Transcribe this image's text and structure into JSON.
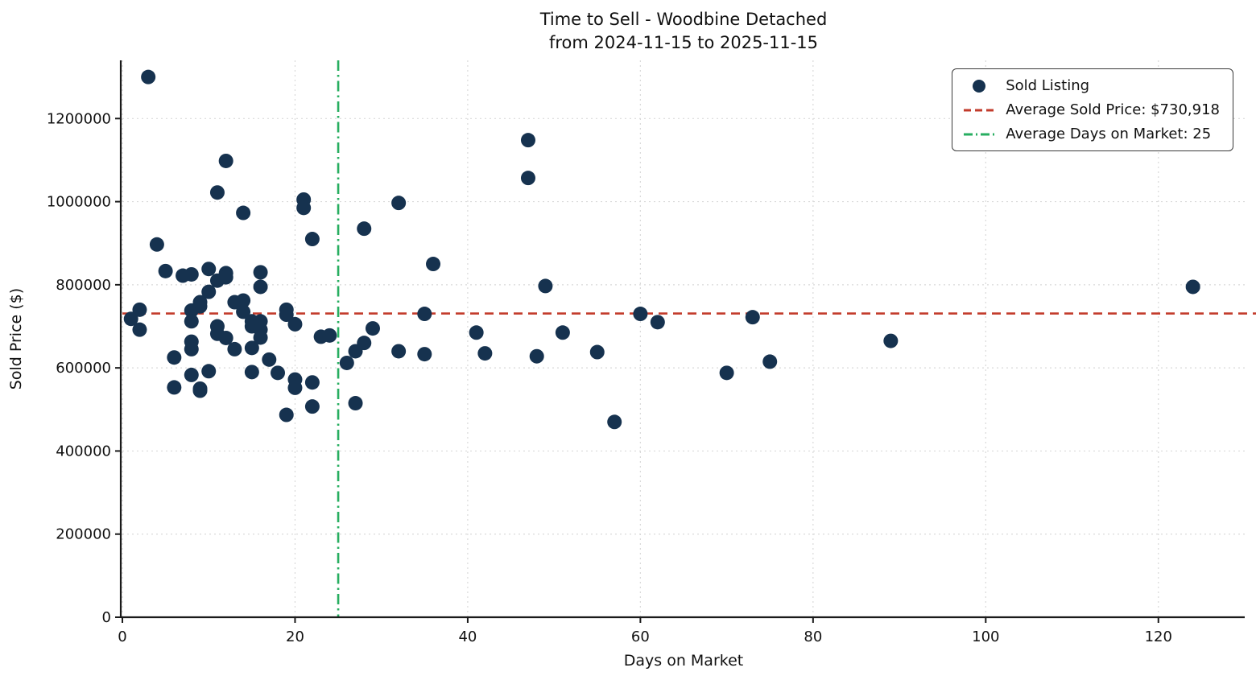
{
  "title": {
    "line1": "Time to Sell - Woodbine Detached",
    "line2": "from 2024-11-15 to 2025-11-15"
  },
  "legend": {
    "items": [
      {
        "label": "Sold Listing",
        "icon": "scatter-dot-icon"
      },
      {
        "label": "Average Sold Price: $730,918",
        "icon": "dashed-line-icon"
      },
      {
        "label": "Average Days on Market: 25",
        "icon": "dashdot-line-icon"
      }
    ]
  },
  "colors": {
    "point": "#16324f",
    "avg_price_line": "#c23b2b",
    "avg_days_line": "#27ae60",
    "grid": "#d9d9d9",
    "spine": "#1a1a1a"
  },
  "chart_data": {
    "type": "scatter",
    "title": "Time to Sell - Woodbine Detached from 2024-11-15 to 2025-11-15",
    "xlabel": "Days on Market",
    "ylabel": "Sold Price ($)",
    "xlim": [
      0,
      130
    ],
    "ylim": [
      0,
      1340000
    ],
    "xticks": [
      0,
      20,
      40,
      60,
      80,
      100,
      120
    ],
    "yticks": [
      0,
      200000,
      400000,
      600000,
      800000,
      1000000,
      1200000
    ],
    "grid": true,
    "legend_position": "upper right",
    "avg_sold_price": 730918,
    "avg_days_on_market": 25,
    "series": [
      {
        "name": "Sold Listing",
        "kind": "scatter",
        "points": [
          [
            3,
            1300000
          ],
          [
            1,
            718000
          ],
          [
            2,
            740000
          ],
          [
            2,
            692000
          ],
          [
            4,
            897000
          ],
          [
            5,
            833000
          ],
          [
            6,
            625000
          ],
          [
            6,
            553000
          ],
          [
            7,
            822000
          ],
          [
            8,
            825000
          ],
          [
            8,
            738000
          ],
          [
            8,
            712000
          ],
          [
            8,
            663000
          ],
          [
            8,
            645000
          ],
          [
            8,
            583000
          ],
          [
            9,
            550000
          ],
          [
            9,
            545000
          ],
          [
            9,
            748000
          ],
          [
            9,
            758000
          ],
          [
            10,
            838000
          ],
          [
            10,
            783000
          ],
          [
            10,
            592000
          ],
          [
            11,
            1022000
          ],
          [
            11,
            810000
          ],
          [
            11,
            700000
          ],
          [
            11,
            682000
          ],
          [
            12,
            1098000
          ],
          [
            12,
            828000
          ],
          [
            12,
            818000
          ],
          [
            12,
            672000
          ],
          [
            13,
            758000
          ],
          [
            13,
            645000
          ],
          [
            14,
            973000
          ],
          [
            14,
            762000
          ],
          [
            14,
            735000
          ],
          [
            15,
            712000
          ],
          [
            15,
            700000
          ],
          [
            15,
            648000
          ],
          [
            15,
            590000
          ],
          [
            16,
            830000
          ],
          [
            16,
            795000
          ],
          [
            16,
            712000
          ],
          [
            16,
            692000
          ],
          [
            16,
            673000
          ],
          [
            17,
            620000
          ],
          [
            18,
            588000
          ],
          [
            19,
            740000
          ],
          [
            19,
            728000
          ],
          [
            19,
            487000
          ],
          [
            20,
            705000
          ],
          [
            20,
            572000
          ],
          [
            20,
            552000
          ],
          [
            21,
            1005000
          ],
          [
            21,
            985000
          ],
          [
            22,
            910000
          ],
          [
            22,
            565000
          ],
          [
            22,
            507000
          ],
          [
            23,
            675000
          ],
          [
            24,
            678000
          ],
          [
            26,
            612000
          ],
          [
            27,
            515000
          ],
          [
            27,
            640000
          ],
          [
            28,
            935000
          ],
          [
            28,
            660000
          ],
          [
            29,
            695000
          ],
          [
            32,
            997000
          ],
          [
            32,
            640000
          ],
          [
            35,
            730000
          ],
          [
            35,
            633000
          ],
          [
            36,
            850000
          ],
          [
            41,
            685000
          ],
          [
            42,
            635000
          ],
          [
            47,
            1148000
          ],
          [
            47,
            1057000
          ],
          [
            48,
            628000
          ],
          [
            49,
            797000
          ],
          [
            51,
            685000
          ],
          [
            55,
            638000
          ],
          [
            57,
            470000
          ],
          [
            60,
            730000
          ],
          [
            62,
            710000
          ],
          [
            70,
            588000
          ],
          [
            73,
            722000
          ],
          [
            75,
            615000
          ],
          [
            89,
            665000
          ],
          [
            124,
            795000
          ]
        ]
      },
      {
        "name": "Average Sold Price: $730,918",
        "kind": "hline",
        "value": 730918,
        "dash": "dashed"
      },
      {
        "name": "Average Days on Market: 25",
        "kind": "vline",
        "value": 25,
        "dash": "dashdot"
      }
    ]
  }
}
